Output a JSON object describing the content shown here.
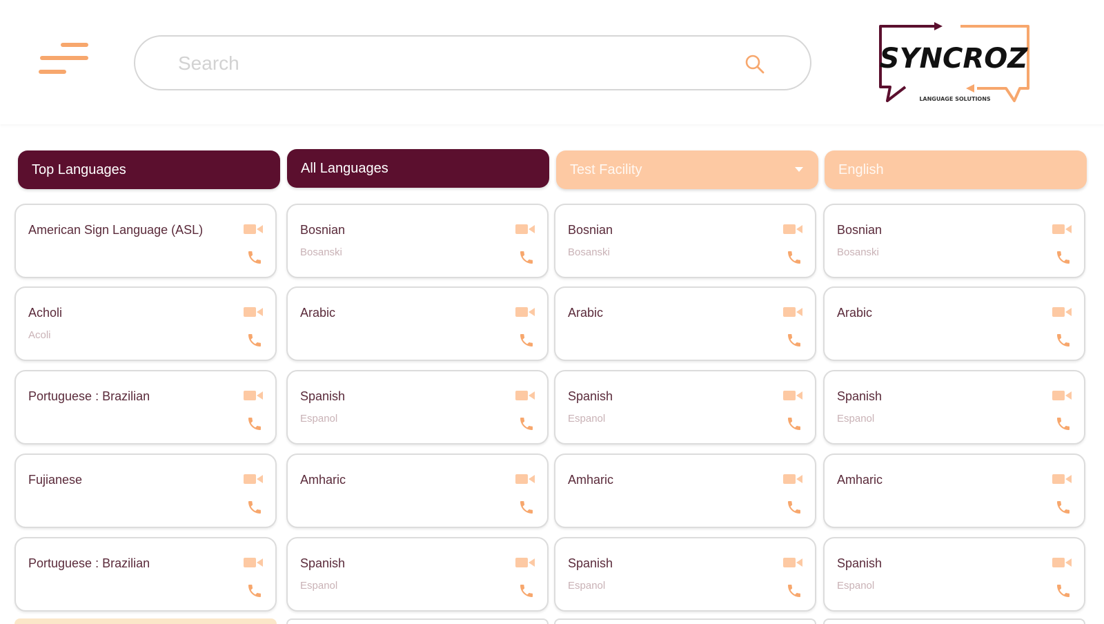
{
  "header": {
    "search_placeholder": "Search",
    "logo_text": "SYNCROZ",
    "logo_tagline": "LANGUAGE SOLUTIONS"
  },
  "selectors": {
    "top_languages": "Top Languages",
    "all_languages": "All Languages",
    "facility": "Test Facility",
    "language": "English"
  },
  "columns": [
    {
      "cards": [
        {
          "name": "American Sign Language (ASL)",
          "native": ""
        },
        {
          "name": "Acholi",
          "native": "Acoli"
        },
        {
          "name": "Portuguese : Brazilian",
          "native": ""
        },
        {
          "name": "Fujianese",
          "native": ""
        },
        {
          "name": "Portuguese : Brazilian",
          "native": ""
        }
      ]
    },
    {
      "cards": [
        {
          "name": "Bosnian",
          "native": "Bosanski"
        },
        {
          "name": "Arabic",
          "native": ""
        },
        {
          "name": "Spanish",
          "native": "Espanol"
        },
        {
          "name": "Amharic",
          "native": ""
        },
        {
          "name": "Spanish",
          "native": "Espanol"
        }
      ]
    },
    {
      "cards": [
        {
          "name": "Bosnian",
          "native": "Bosanski"
        },
        {
          "name": "Arabic",
          "native": ""
        },
        {
          "name": "Spanish",
          "native": "Espanol"
        },
        {
          "name": "Amharic",
          "native": ""
        },
        {
          "name": "Spanish",
          "native": "Espanol"
        }
      ]
    },
    {
      "cards": [
        {
          "name": "Bosnian",
          "native": "Bosanski"
        },
        {
          "name": "Arabic",
          "native": ""
        },
        {
          "name": "Spanish",
          "native": "Espanol"
        },
        {
          "name": "Amharic",
          "native": ""
        },
        {
          "name": "Spanish",
          "native": "Espanol"
        }
      ]
    }
  ],
  "colors": {
    "primary": "#5b0f2e",
    "accent": "#f7a76d",
    "accent_light": "#fdc9a3"
  },
  "icons": {
    "menu": "menu-icon",
    "search": "search-icon",
    "video": "video-call-icon",
    "phone": "phone-icon",
    "dropdown": "chevron-down-icon"
  }
}
